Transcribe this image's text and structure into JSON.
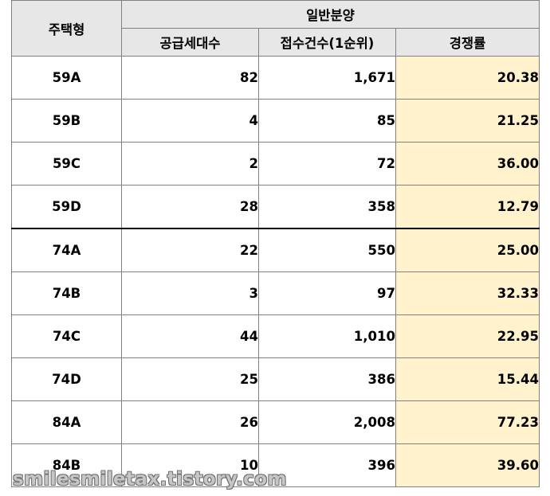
{
  "table": {
    "headers": {
      "type": "주택형",
      "group": "일반분양",
      "supply": "공급세대수",
      "applications": "접수건수(1순위)",
      "rate": "경쟁률"
    },
    "rows": [
      {
        "type": "59A",
        "supply": "82",
        "applications": "1,671",
        "rate": "20.38"
      },
      {
        "type": "59B",
        "supply": "4",
        "applications": "85",
        "rate": "21.25"
      },
      {
        "type": "59C",
        "supply": "2",
        "applications": "72",
        "rate": "36.00"
      },
      {
        "type": "59D",
        "supply": "28",
        "applications": "358",
        "rate": "12.79"
      },
      {
        "type": "74A",
        "supply": "22",
        "applications": "550",
        "rate": "25.00"
      },
      {
        "type": "74B",
        "supply": "3",
        "applications": "97",
        "rate": "32.33"
      },
      {
        "type": "74C",
        "supply": "44",
        "applications": "1,010",
        "rate": "22.95"
      },
      {
        "type": "74D",
        "supply": "25",
        "applications": "386",
        "rate": "15.44"
      },
      {
        "type": "84A",
        "supply": "26",
        "applications": "2,008",
        "rate": "77.23"
      },
      {
        "type": "84B",
        "supply": "10",
        "applications": "396",
        "rate": "39.60"
      }
    ]
  },
  "colors": {
    "header_bg": "#e7e7e7",
    "rate_bg": "#fff2cc",
    "border": "#808080"
  },
  "watermark": "smilesmiletax.tistory.com"
}
